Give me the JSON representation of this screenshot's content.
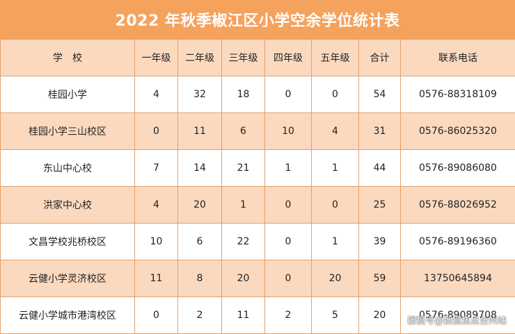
{
  "title": "2022 年秋季椒江区小学空余学位统计表",
  "headers": [
    "学　校",
    "一年级",
    "二年级",
    "三年级",
    "四年级",
    "五年级",
    "合计",
    "联系电话"
  ],
  "rows": [
    [
      "桂园小学",
      "4",
      "32",
      "18",
      "0",
      "0",
      "54",
      "0576-88318109"
    ],
    [
      "桂园小学三山校区",
      "0",
      "11",
      "6",
      "10",
      "4",
      "31",
      "0576-86025320"
    ],
    [
      "东山中心校",
      "7",
      "14",
      "21",
      "1",
      "1",
      "44",
      "0576-89086080"
    ],
    [
      "洪家中心校",
      "4",
      "20",
      "1",
      "0",
      "0",
      "25",
      "0576-88026952"
    ],
    [
      "文昌学校兆桥校区",
      "10",
      "6",
      "22",
      "0",
      "1",
      "39",
      "0576-89196360"
    ],
    [
      "云健小学灵济校区",
      "11",
      "8",
      "20",
      "0",
      "20",
      "59",
      "13750645894"
    ],
    [
      "云健小学城市港湾校区",
      "0",
      "2",
      "11",
      "2",
      "5",
      "20",
      "0576-89089708"
    ]
  ],
  "watermark": "搜狐号@搜狐焦点台州站"
}
